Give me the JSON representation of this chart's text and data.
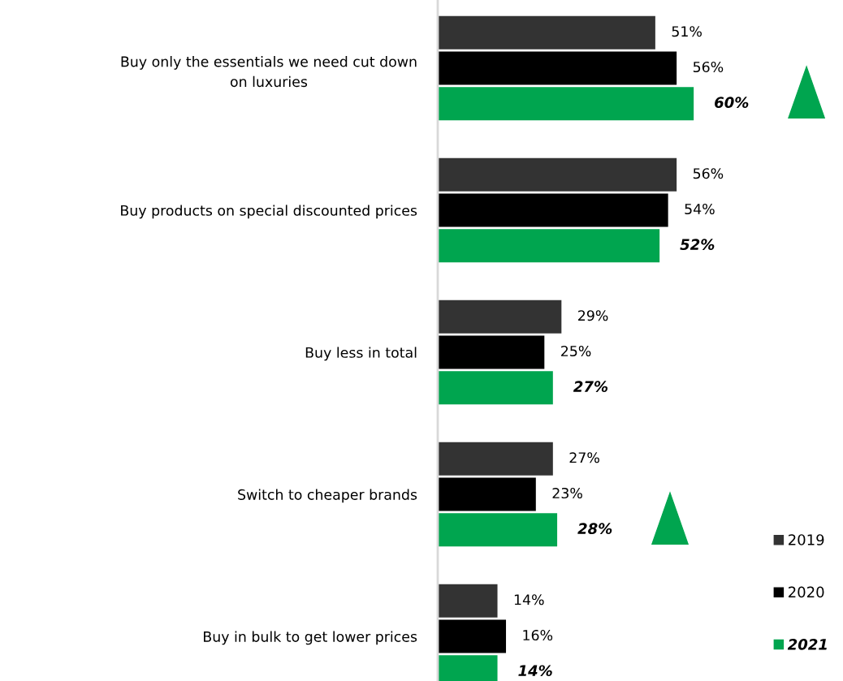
{
  "chart_data": {
    "type": "bar",
    "orientation": "horizontal",
    "categories": [
      "Buy only the essentials we need cut down on luxuries",
      "Buy products on special discounted prices",
      "Buy less in total",
      "Switch to cheaper brands",
      "Buy in bulk to get lower prices"
    ],
    "series": [
      {
        "name": "2019",
        "color": "#333333",
        "values": [
          51,
          56,
          29,
          27,
          14
        ],
        "value_labels": [
          "51%",
          "56%",
          "29%",
          "27%",
          "14%"
        ]
      },
      {
        "name": "2020",
        "color": "#000000",
        "values": [
          56,
          54,
          25,
          23,
          16
        ],
        "value_labels": [
          "56%",
          "54%",
          "25%",
          "23%",
          "16%"
        ]
      },
      {
        "name": "2021",
        "color": "#00a54f",
        "values": [
          60,
          52,
          27,
          28,
          14
        ],
        "value_labels": [
          "60%",
          "52%",
          "27%",
          "28%",
          "14%"
        ]
      }
    ],
    "legend": "bottom right",
    "grid": false
  }
}
